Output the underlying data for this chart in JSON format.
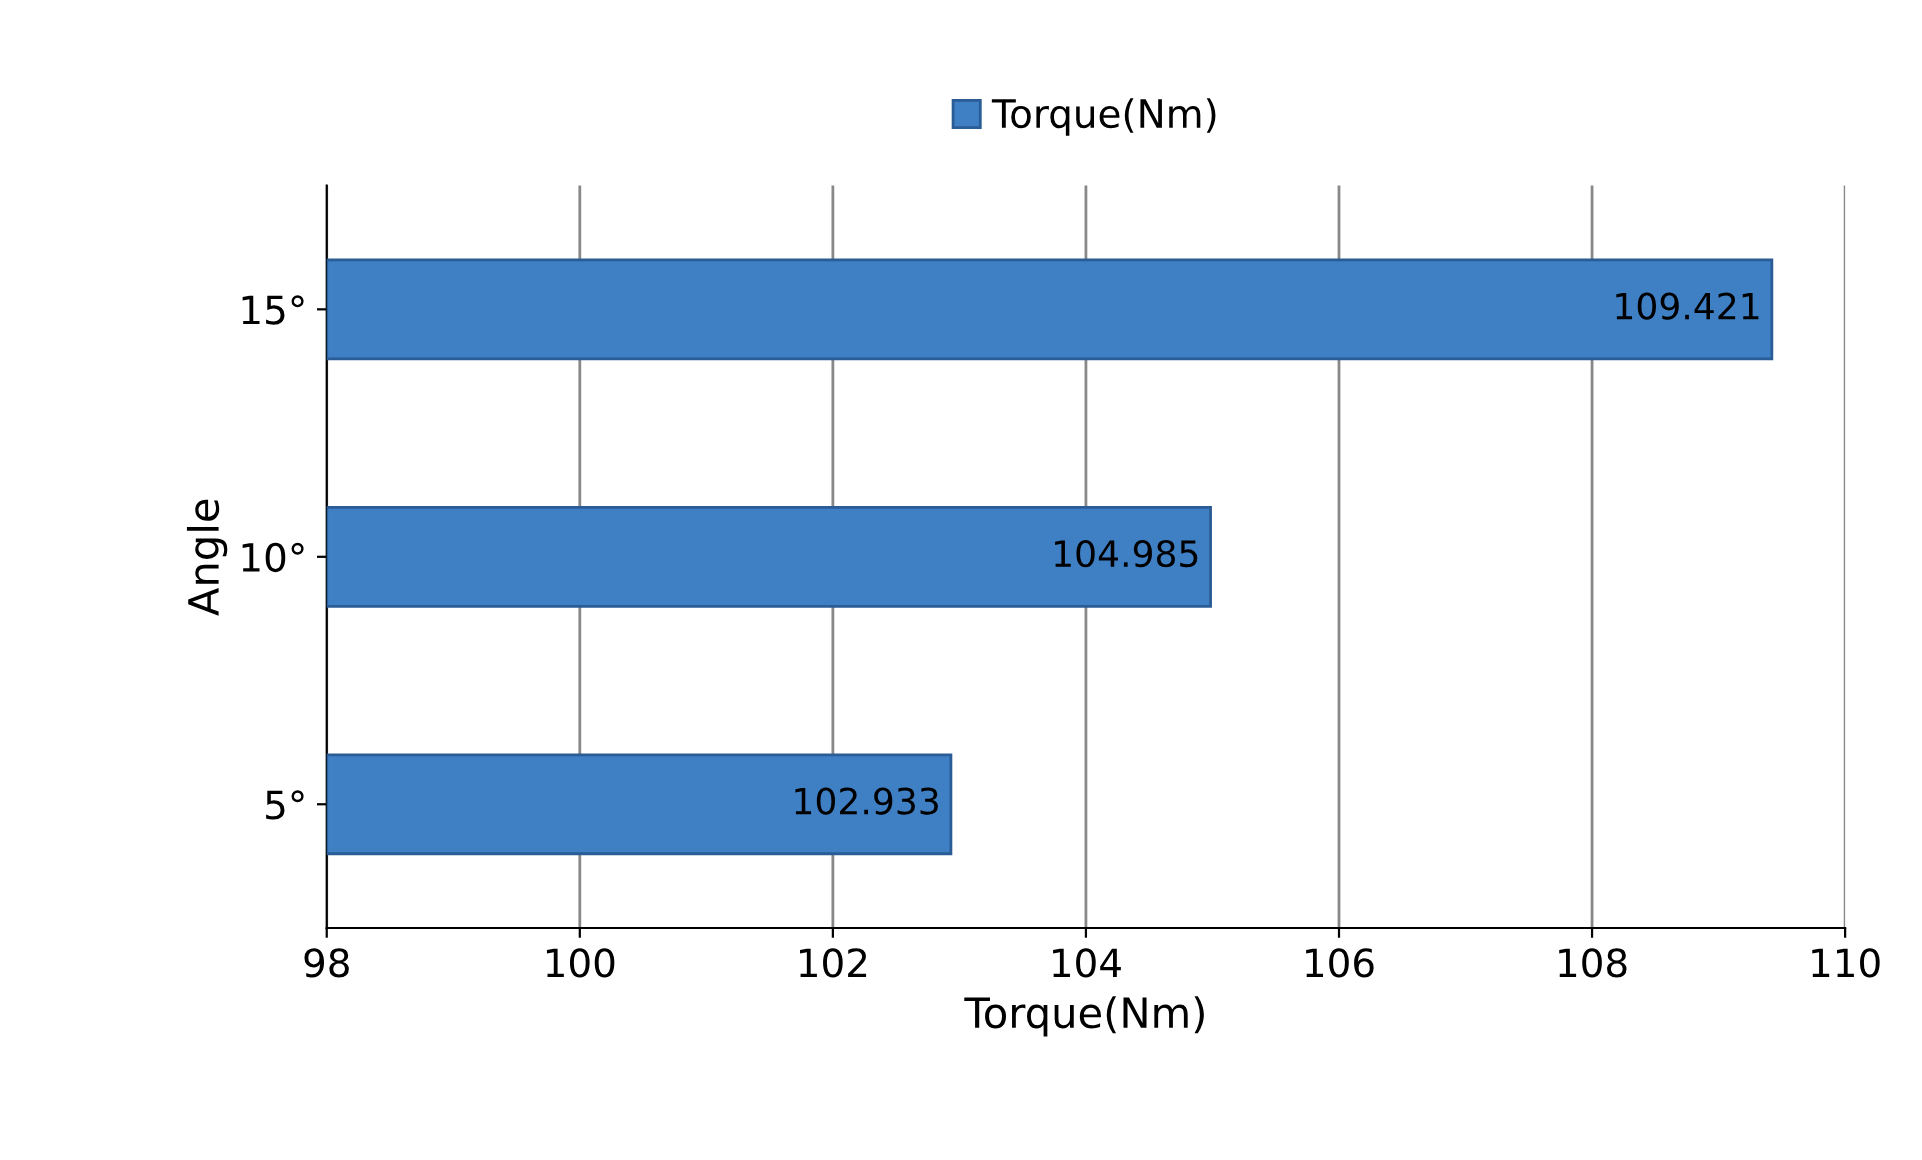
{
  "chart_data": {
    "type": "bar",
    "orientation": "horizontal",
    "xlabel": "Torque(Nm)",
    "ylabel": "Angle",
    "categories": [
      "15°",
      "10°",
      "5°"
    ],
    "series": [
      {
        "name": "Torque(Nm)",
        "color": "#3f7fc4",
        "values": [
          109.421,
          104.985,
          102.933
        ]
      }
    ],
    "xlim": [
      98,
      110
    ],
    "xticks": [
      98,
      100,
      102,
      104,
      106,
      108,
      110
    ],
    "grid": "x",
    "legend": "top",
    "data_labels": true
  }
}
